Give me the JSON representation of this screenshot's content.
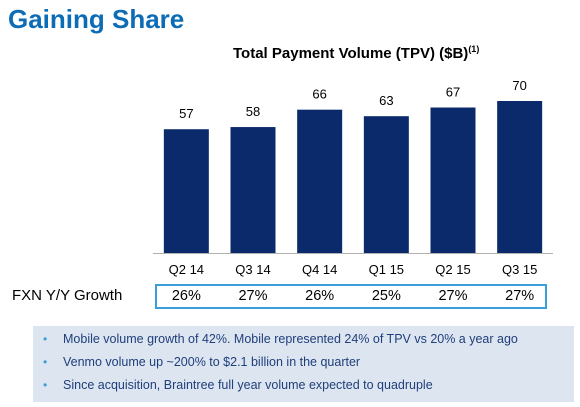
{
  "page_title": "Gaining Share",
  "chart_data": {
    "type": "bar",
    "title": "Total Payment Volume (TPV) ($B)",
    "title_footnote": "(1)",
    "categories": [
      "Q2 14",
      "Q3 14",
      "Q4 14",
      "Q1 15",
      "Q2 15",
      "Q3 15"
    ],
    "values": [
      57,
      58,
      66,
      63,
      67,
      70
    ],
    "data_labels": [
      "57",
      "58",
      "66",
      "63",
      "67",
      "70"
    ],
    "bar_color": "#0b2a6b",
    "axis_color": "#b0b0b0",
    "ylim": [
      0,
      70
    ],
    "grid": false
  },
  "growth_row": {
    "label": "FXN Y/Y Growth",
    "values": [
      "26%",
      "27%",
      "26%",
      "25%",
      "27%",
      "27%"
    ],
    "border_color": "#3a9fd8"
  },
  "bullets": [
    "Mobile volume growth of 42%. Mobile represented 24% of TPV vs 20% a year ago",
    "Venmo volume up ~200% to $2.1 billion in the quarter",
    "Since acquisition, Braintree full year volume expected to quadruple"
  ],
  "colors": {
    "title": "#0c6cb6",
    "bullet_bg": "#dde5f1",
    "bullet_text": "#1f3f7a",
    "bullet_dot": "#3a9fd8"
  }
}
